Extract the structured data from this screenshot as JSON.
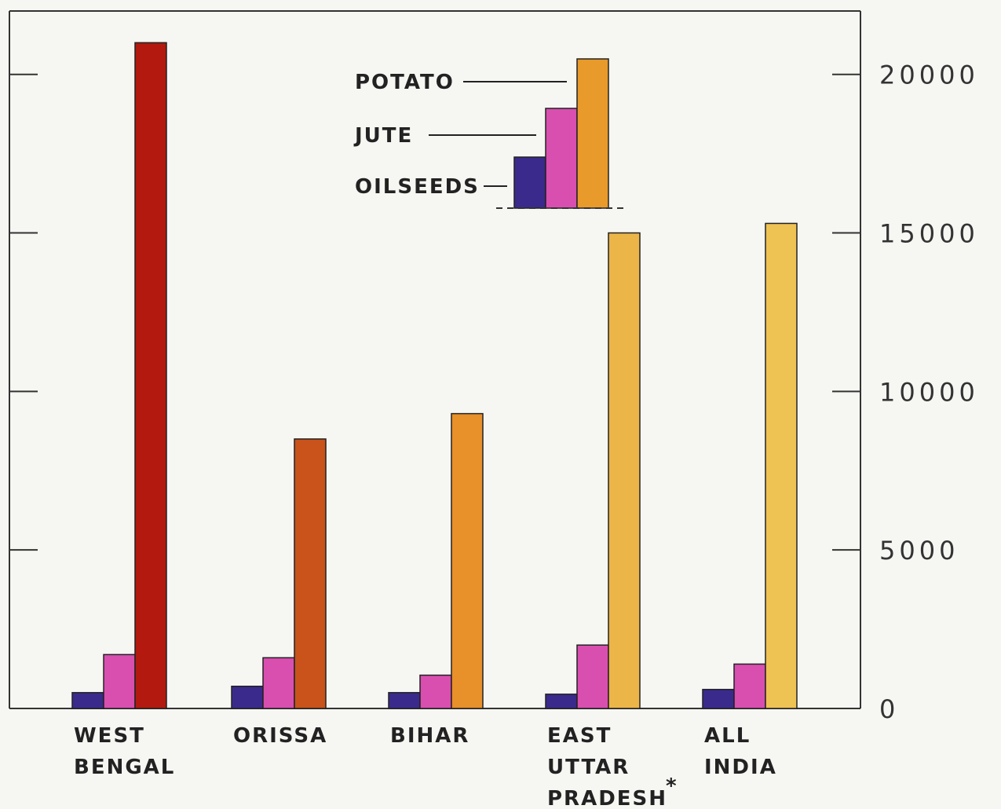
{
  "chart_data": {
    "type": "bar",
    "categories": [
      [
        "WEST",
        "BENGAL"
      ],
      [
        "ORISSA"
      ],
      [
        "BIHAR"
      ],
      [
        "EAST",
        "UTTAR",
        "PRADESH"
      ],
      [
        "ALL",
        "INDIA"
      ]
    ],
    "category_note": {
      "index": 3,
      "mark": "*"
    },
    "series": [
      {
        "name": "OILSEEDS",
        "values": [
          500,
          700,
          500,
          450,
          600
        ],
        "color": "#3a2a8c"
      },
      {
        "name": "JUTE",
        "values": [
          1700,
          1600,
          1050,
          2000,
          1400
        ],
        "color": "#d94fb0"
      },
      {
        "name": "POTATO",
        "values": [
          21000,
          8500,
          9300,
          15000,
          15300
        ],
        "color": "#e89a2a"
      }
    ],
    "potato_bar_colors": [
      "#b3190e",
      "#c9531a",
      "#e8902a",
      "#ebb548",
      "#efc254"
    ],
    "yaxis": {
      "ticks": [
        0,
        5000,
        10000,
        15000,
        20000
      ],
      "tick_labels": [
        "0",
        "5000",
        "10000",
        "15000",
        "20000"
      ],
      "position": "right"
    },
    "ylim": [
      0,
      22000
    ],
    "legend_placement": "top-center",
    "title": "",
    "xlabel": "",
    "ylabel": "",
    "grid": false
  }
}
